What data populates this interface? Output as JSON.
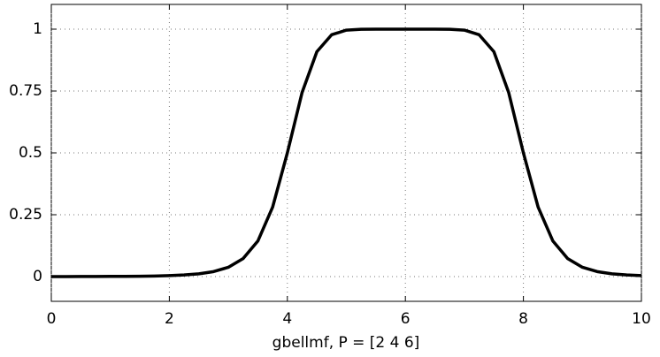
{
  "chart_data": {
    "type": "line",
    "xlabel": "gbellmf, P = [2 4 6]",
    "x": [
      0,
      0.25,
      0.5,
      0.75,
      1,
      1.25,
      1.5,
      1.75,
      2,
      2.25,
      2.5,
      2.75,
      3,
      3.25,
      3.5,
      3.75,
      4,
      4.25,
      4.5,
      4.75,
      5,
      5.25,
      5.5,
      5.75,
      6,
      6.25,
      6.5,
      6.75,
      7,
      7.25,
      7.5,
      7.75,
      8,
      8.25,
      8.5,
      8.75,
      9,
      9.25,
      9.5,
      9.75,
      10
    ],
    "series": [
      {
        "color": "#000000",
        "values": [
          0.0002,
          0.0002,
          0.0003,
          0.0004,
          0.0007,
          0.001,
          0.0015,
          0.0024,
          0.0039,
          0.0065,
          0.0112,
          0.0202,
          0.0376,
          0.0726,
          0.1437,
          0.2804,
          0.5,
          0.7443,
          0.909,
          0.9773,
          0.9961,
          0.9996,
          1,
          1,
          1,
          1,
          1,
          0.9996,
          0.9961,
          0.9773,
          0.909,
          0.7443,
          0.5,
          0.2804,
          0.1437,
          0.0726,
          0.0376,
          0.0202,
          0.0112,
          0.0065,
          0.0039
        ]
      }
    ],
    "xlim": [
      0,
      10
    ],
    "xticks": [
      0,
      2,
      4,
      6,
      8,
      10
    ],
    "ylim": [
      -0.1,
      1.1
    ],
    "yticks": [
      0,
      0.25,
      0.5,
      0.75,
      1
    ],
    "grid": true
  }
}
